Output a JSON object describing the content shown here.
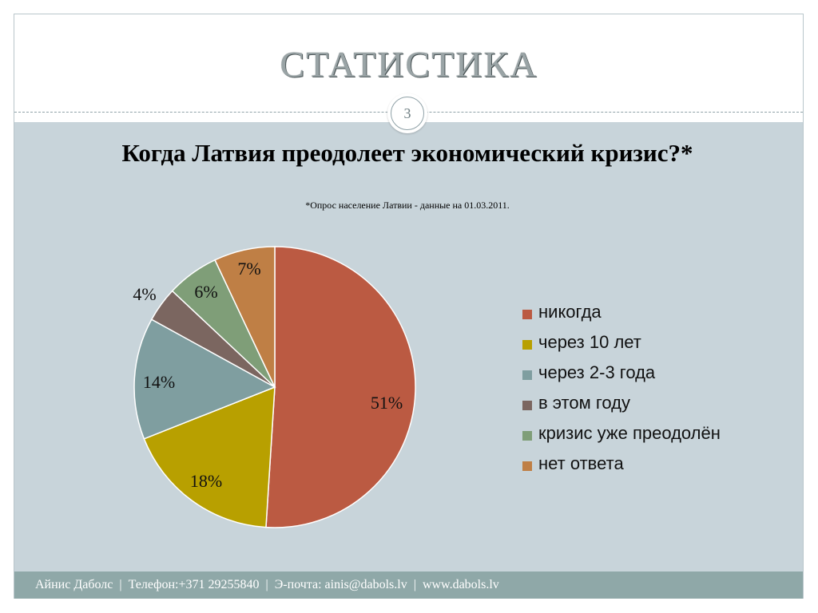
{
  "slide": {
    "title": "СТАТИСТИКА",
    "number": "3"
  },
  "chart_data": {
    "type": "pie",
    "title": "Когда Латвия преодолеет экономический кризис?*",
    "subtitle": "*Опрос население Латвии - данные на 01.03.2011.",
    "legend_position": "right",
    "categories": [
      "никогда",
      "через 10 лет",
      "через 2-3 года",
      "в этом году",
      "кризис уже преодолён",
      "нет ответа"
    ],
    "values": [
      51,
      18,
      14,
      4,
      6,
      7
    ],
    "labels": [
      "51%",
      "18%",
      "14%",
      "4%",
      "6%",
      "7%"
    ],
    "colors": [
      "#bb5a42",
      "#b8a000",
      "#7f9ea0",
      "#7b6660",
      "#7f9e78",
      "#bf7f45"
    ]
  },
  "footer": {
    "name": "Айнис Даболс",
    "phone": "Телефон:+371 29255840",
    "email": "Э-почта: ainis@dabols.lv",
    "web": "www.dabols.lv",
    "separator": "|"
  }
}
